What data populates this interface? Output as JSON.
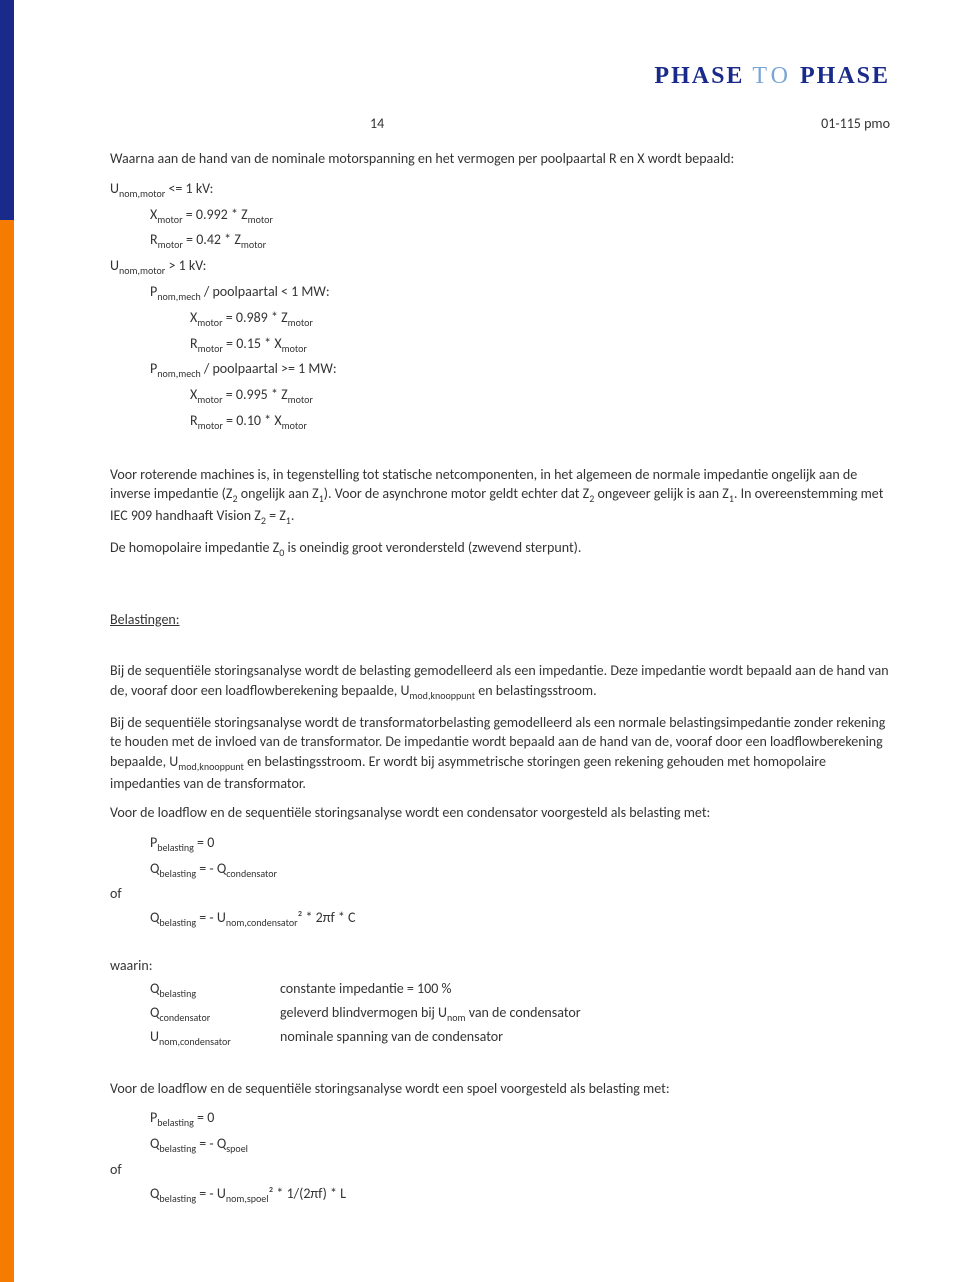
{
  "logo": {
    "part1": "PHASE",
    "part2": "TO",
    "part3": "PHASE"
  },
  "header": {
    "pagenum": "14",
    "docnum": "01-115 pmo"
  },
  "intro": "Waarna aan de hand van de nominale motorspanning en het vermogen per poolpaartal R en X wordt bepaald:",
  "case1": {
    "cond": "U_nom,motor <= 1 kV:",
    "x": "X_motor = 0.992 * Z_motor",
    "r": "R_motor = 0.42 * Z_motor"
  },
  "case2": {
    "cond": "U_nom,motor > 1 kV:",
    "sub1": {
      "cond": "P_nom,mech / poolpaartal < 1 MW:",
      "x": "X_motor = 0.989 * Z_motor",
      "r": "R_motor = 0.15 * X_motor"
    },
    "sub2": {
      "cond": "P_nom,mech / poolpaartal >= 1 MW:",
      "x": "X_motor = 0.995 * Z_motor",
      "r": "R_motor = 0.10 * X_motor"
    }
  },
  "para1": "Voor roterende machines is, in tegenstelling tot statische netcomponenten, in het algemeen de normale impedantie ongelijk aan de inverse impedantie (Z₂ ongelijk aan Z₁). Voor de asynchrone motor geldt echter dat Z₂ ongeveer gelijk is aan Z₁. In overeenstemming met IEC 909 handhaaft Vision Z₂ = Z₁.",
  "para2": "De homopolaire impedantie Z₀ is oneindig groot verondersteld (zwevend sterpunt).",
  "belastingen": {
    "title": "Belastingen:",
    "p1": "Bij de sequentiële storingsanalyse wordt de belasting gemodelleerd als een impedantie. Deze impedantie wordt bepaald aan de hand van de, vooraf door een loadflowberekening bepaalde, U_mod,knooppunt en belastingsstroom.",
    "p2": "Bij de sequentiële storingsanalyse wordt de transformatorbelasting gemodelleerd als een normale belastingsimpedantie zonder rekening te houden met de invloed van de transformator. De impedantie wordt bepaald aan de hand van de, vooraf door een loadflowberekening bepaalde, U_mod,knooppunt en belastingsstroom. Er wordt bij asymmetrische storingen geen rekening gehouden met homopolaire impedanties van de transformator.",
    "p3": "Voor de loadflow en de sequentiële storingsanalyse wordt een condensator voorgesteld als belasting met:",
    "eq1": "P_belasting = 0",
    "eq2": "Q_belasting = - Q_condensator",
    "of": "of",
    "eq3": "Q_belasting = - U_nom,condensator² * 2πf * C",
    "waarin": "waarin:",
    "def1t": "Q_belasting",
    "def1d": "constante impedantie = 100 %",
    "def2t": "Q_condensator",
    "def2d": "geleverd blindvermogen bij U_nom van de condensator",
    "def3t": "U_nom,condensator",
    "def3d": "nominale spanning van de condensator",
    "p4": "Voor de loadflow en de sequentiële storingsanalyse wordt een spoel voorgesteld als belasting met:",
    "eq4": "P_belasting = 0",
    "eq5": "Q_belasting = - Q_spoel",
    "eq6": "Q_belasting = - U_nom,spoel² * 1/(2πf) * L"
  }
}
